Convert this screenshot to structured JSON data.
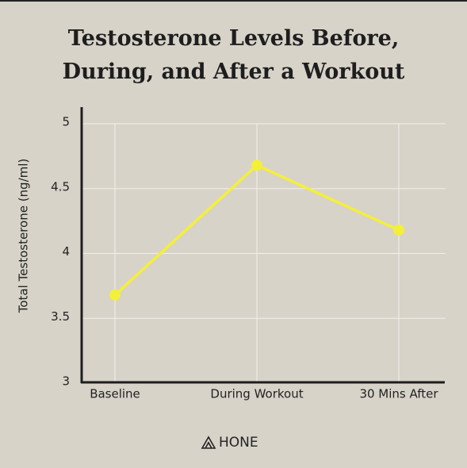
{
  "chart_data": {
    "type": "line",
    "title": "Testosterone Levels Before, During, and After a Workout",
    "y_label": "Total Testosterone (ng/ml)",
    "categories": [
      "Baseline",
      "During Workout",
      "30 Mins After"
    ],
    "values": [
      3.68,
      4.68,
      4.18
    ],
    "color": "#f4ef3a",
    "ylim": [
      3,
      5
    ],
    "yticks": [
      3,
      3.5,
      4,
      4.5,
      5
    ],
    "grid": true
  },
  "brand": "HONE"
}
